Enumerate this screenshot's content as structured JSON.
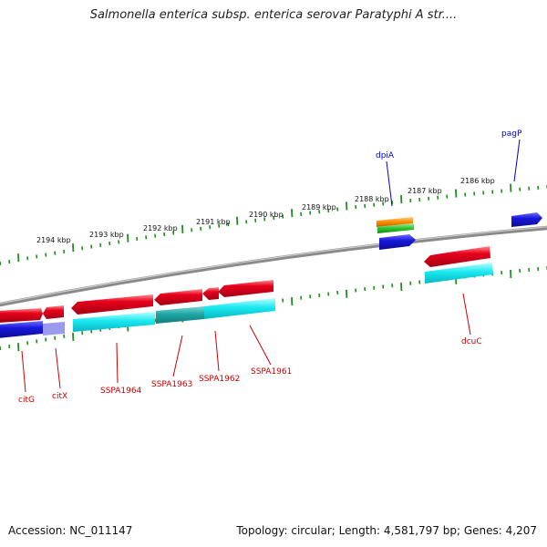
{
  "title": "Salmonella enterica subsp. enterica serovar Paratyphi A str....",
  "footer": {
    "accession": "Accession: NC_011147",
    "summary": "Topology: circular; Length: 4,581,797 bp; Genes: 4,207"
  },
  "colors": {
    "backbone": "#8a8a8a",
    "tick": "#228b22",
    "feature_red": "#e4001b",
    "feature_cyan": "#19e8f0",
    "feature_blue": "#1818dd",
    "feature_orange": "#ff8c00",
    "feature_green": "#2cc52c",
    "label_blue": "#0000cc",
    "label_red": "#cc0000"
  },
  "ruler_labels": [
    "2194 kbp",
    "2193 kbp",
    "2192 kbp",
    "2191 kbp",
    "2190 kbp",
    "2189 kbp",
    "2188 kbp",
    "2187 kbp",
    "2186 kbp"
  ],
  "gene_labels": {
    "pagP": "pagP",
    "dpiA": "dpiA",
    "dcuC": "dcuC",
    "citG": "citG",
    "citX": "citX",
    "SSPA1964": "SSPA1964",
    "SSPA1963": "SSPA1963",
    "SSPA1962": "SSPA1962",
    "SSPA1961": "SSPA1961"
  }
}
